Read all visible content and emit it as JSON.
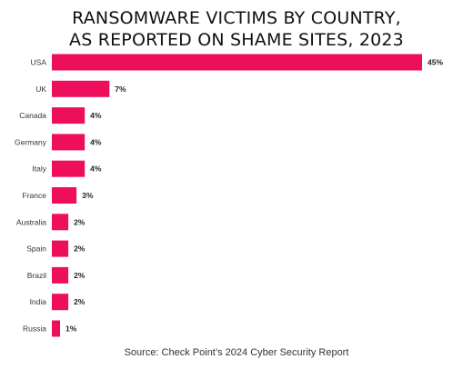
{
  "chart_data": {
    "type": "bar",
    "orientation": "horizontal",
    "title_lines": [
      "RANSOMWARE VICTIMS BY COUNTRY,",
      "AS REPORTED ON SHAME SITES, 2023"
    ],
    "categories": [
      "USA",
      "UK",
      "Canada",
      "Germany",
      "Italy",
      "France",
      "Australia",
      "Spain",
      "Brazil",
      "India",
      "Russia"
    ],
    "values": [
      45,
      7,
      4,
      4,
      4,
      3,
      2,
      2,
      2,
      2,
      1
    ],
    "value_labels": [
      "45%",
      "7%",
      "4%",
      "4%",
      "4%",
      "3%",
      "2%",
      "2%",
      "2%",
      "2%",
      "1%"
    ],
    "unit": "%",
    "xlim": [
      0,
      45
    ],
    "grid": false,
    "bar_color": "#ED0E5C",
    "source": "Source: Check Point’s 2024 Cyber Security Report"
  }
}
